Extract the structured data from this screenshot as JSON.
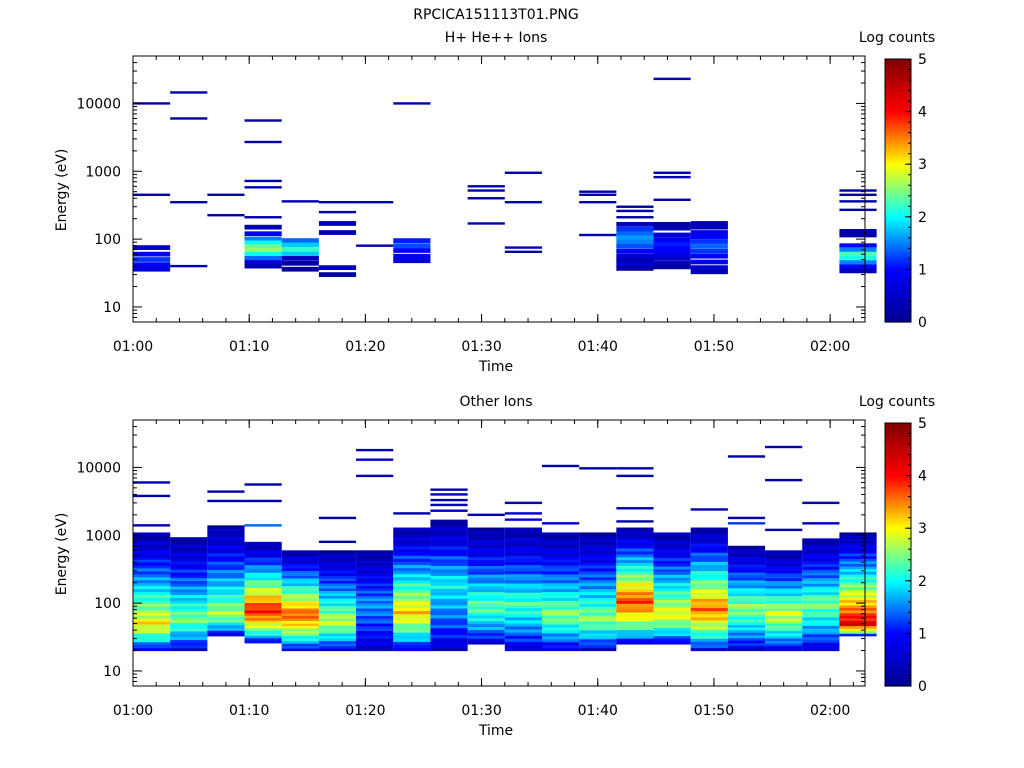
{
  "figure_title": "RPCICA151113T01.PNG",
  "colorbar": {
    "label": "Log counts",
    "ticks": [
      "0",
      "1",
      "2",
      "3",
      "4",
      "5"
    ],
    "colormap": [
      "#00008f",
      "#0000ff",
      "#00ffff",
      "#ffff00",
      "#ff0000",
      "#800000"
    ]
  },
  "chart_data": [
    {
      "type": "heatmap",
      "title": "H+ He++ Ions",
      "xlabel": "Time",
      "ylabel": "Energy (eV)",
      "x_ticks": [
        "01:00",
        "01:10",
        "01:20",
        "01:30",
        "01:40",
        "01:50",
        "02:00"
      ],
      "xlim_minutes": [
        0,
        63
      ],
      "y_ticks": [
        "10",
        "100",
        "1000",
        "10000"
      ],
      "ylim": [
        6,
        50000
      ],
      "y_scale": "log",
      "clim": [
        0,
        5
      ],
      "time_bins_minutes": [
        0,
        3.2,
        6.4,
        9.6,
        12.8,
        16,
        19.2,
        22.4,
        25.6,
        28.8,
        32,
        35.2,
        38.4,
        41.6,
        44.8,
        48,
        51.2,
        54.4,
        57.6,
        60.8
      ],
      "columns": [
        {
          "t": 0,
          "cells": [
            [
              10000,
              0.2
            ],
            [
              450,
              0.2
            ],
            [
              75,
              0.5
            ],
            [
              60,
              0.9
            ],
            [
              50,
              1.2
            ],
            [
              42,
              1.0
            ],
            [
              36,
              0.7
            ]
          ]
        },
        {
          "t": 3.2,
          "cells": [
            [
              14500,
              0.2
            ],
            [
              6000,
              0.2
            ],
            [
              350,
              0.2
            ],
            [
              40,
              0.4
            ]
          ]
        },
        {
          "t": 6.4,
          "cells": [
            [
              450,
              0.3
            ],
            [
              225,
              0.2
            ]
          ]
        },
        {
          "t": 9.6,
          "cells": [
            [
              5600,
              0.2
            ],
            [
              2700,
              0.2
            ],
            [
              720,
              0.3
            ],
            [
              580,
              0.2
            ],
            [
              210,
              0.2
            ],
            [
              150,
              0.3
            ],
            [
              120,
              0.9
            ],
            [
              100,
              1.5
            ],
            [
              88,
              2.0
            ],
            [
              78,
              2.4
            ],
            [
              68,
              2.6
            ],
            [
              60,
              2.0
            ],
            [
              52,
              1.4
            ],
            [
              45,
              0.7
            ],
            [
              40,
              0.3
            ]
          ]
        },
        {
          "t": 12.8,
          "cells": [
            [
              360,
              0.3
            ],
            [
              95,
              1.4
            ],
            [
              82,
              1.8
            ],
            [
              70,
              2.2
            ],
            [
              60,
              1.8
            ],
            [
              52,
              0.4
            ],
            [
              44,
              0.2
            ],
            [
              36,
              0.1
            ]
          ]
        },
        {
          "t": 16,
          "cells": [
            [
              350,
              0.2
            ],
            [
              250,
              0.3
            ],
            [
              170,
              0.4
            ],
            [
              125,
              0.3
            ],
            [
              38,
              0.4
            ],
            [
              30,
              0.2
            ]
          ]
        },
        {
          "t": 19.2,
          "cells": [
            [
              350,
              0.2
            ],
            [
              80,
              0.3
            ]
          ]
        },
        {
          "t": 22.4,
          "cells": [
            [
              10000,
              0.3
            ],
            [
              95,
              1.1
            ],
            [
              80,
              1.3
            ],
            [
              68,
              1.0
            ],
            [
              56,
              0.9
            ],
            [
              48,
              0.7
            ]
          ]
        },
        {
          "t": 28.8,
          "cells": [
            [
              600,
              0.2
            ],
            [
              520,
              0.3
            ],
            [
              400,
              0.2
            ],
            [
              170,
              0.3
            ]
          ]
        },
        {
          "t": 32,
          "cells": [
            [
              950,
              0.2
            ],
            [
              350,
              0.2
            ],
            [
              75,
              0.3
            ],
            [
              65,
              0.2
            ]
          ]
        },
        {
          "t": 38.4,
          "cells": [
            [
              500,
              0.2
            ],
            [
              450,
              0.2
            ],
            [
              350,
              0.2
            ],
            [
              115,
              0.3
            ]
          ]
        },
        {
          "t": 41.6,
          "cells": [
            [
              300,
              0.2
            ],
            [
              260,
              0.3
            ],
            [
              210,
              0.3
            ],
            [
              165,
              0.4
            ],
            [
              140,
              1.2
            ],
            [
              120,
              1.4
            ],
            [
              105,
              1.6
            ],
            [
              90,
              1.5
            ],
            [
              78,
              1.3
            ],
            [
              66,
              1.0
            ],
            [
              56,
              0.6
            ],
            [
              48,
              0.3
            ],
            [
              42,
              0.6
            ],
            [
              37,
              0.2
            ]
          ]
        },
        {
          "t": 44.8,
          "cells": [
            [
              23000,
              0.3
            ],
            [
              950,
              0.2
            ],
            [
              820,
              0.3
            ],
            [
              380,
              0.2
            ],
            [
              165,
              0.2
            ],
            [
              145,
              0.3
            ],
            [
              115,
              0.6
            ],
            [
              98,
              0.9
            ],
            [
              84,
              1.1
            ],
            [
              72,
              1.0
            ],
            [
              62,
              0.8
            ],
            [
              53,
              0.6
            ],
            [
              45,
              0.4
            ],
            [
              39,
              0.2
            ]
          ]
        },
        {
          "t": 48,
          "cells": [
            [
              170,
              0.3
            ],
            [
              150,
              0.4
            ],
            [
              125,
              0.8
            ],
            [
              108,
              1.0
            ],
            [
              92,
              1.2
            ],
            [
              78,
              1.4
            ],
            [
              66,
              1.2
            ],
            [
              56,
              1.0
            ],
            [
              46,
              0.9
            ],
            [
              38,
              0.6
            ],
            [
              33,
              0.3
            ]
          ]
        },
        {
          "t": 60.8,
          "cells": [
            [
              520,
              0.3
            ],
            [
              450,
              0.2
            ],
            [
              360,
              0.2
            ],
            [
              270,
              0.3
            ],
            [
              130,
              0.3
            ],
            [
              115,
              0.2
            ],
            [
              80,
              1.0
            ],
            [
              70,
              1.5
            ],
            [
              60,
              2.3
            ],
            [
              52,
              2.1
            ],
            [
              45,
              1.5
            ],
            [
              39,
              1.0
            ],
            [
              34,
              0.4
            ]
          ]
        }
      ]
    },
    {
      "type": "heatmap",
      "title": "Other Ions",
      "xlabel": "Time",
      "ylabel": "Energy (eV)",
      "x_ticks": [
        "01:00",
        "01:10",
        "01:20",
        "01:30",
        "01:40",
        "01:50",
        "02:00"
      ],
      "xlim_minutes": [
        0,
        63
      ],
      "y_ticks": [
        "10",
        "100",
        "1000",
        "10000"
      ],
      "ylim": [
        6,
        50000
      ],
      "y_scale": "log",
      "clim": [
        0,
        5
      ],
      "time_bins_minutes": [
        0,
        3.2,
        6.4,
        9.6,
        12.8,
        16,
        19.2,
        22.4,
        25.6,
        28.8,
        32,
        35.2,
        38.4,
        41.6,
        44.8,
        48,
        51.2,
        54.4,
        57.6,
        60.8
      ],
      "sparse_lines": [
        {
          "t": 0,
          "cells": [
            [
              6000,
              0.3
            ],
            [
              3800,
              0.3
            ],
            [
              1400,
              0.3
            ]
          ]
        },
        {
          "t": 3.2,
          "cells": [
            [
              900,
              0.3
            ]
          ]
        },
        {
          "t": 6.4,
          "cells": [
            [
              4400,
              0.2
            ],
            [
              3200,
              0.3
            ]
          ]
        },
        {
          "t": 9.6,
          "cells": [
            [
              5600,
              0.2
            ],
            [
              3200,
              0.3
            ],
            [
              1400,
              1.4
            ]
          ]
        },
        {
          "t": 16,
          "cells": [
            [
              1800,
              0.3
            ],
            [
              800,
              0.3
            ]
          ]
        },
        {
          "t": 19.2,
          "cells": [
            [
              18000,
              0.3
            ],
            [
              13000,
              0.6
            ],
            [
              7500,
              0.3
            ]
          ]
        },
        {
          "t": 22.4,
          "cells": [
            [
              2100,
              0.3
            ]
          ]
        },
        {
          "t": 25.6,
          "cells": [
            [
              4700,
              0.3
            ],
            [
              4000,
              0.4
            ],
            [
              3300,
              0.3
            ],
            [
              2800,
              0.5
            ],
            [
              2300,
              0.3
            ]
          ]
        },
        {
          "t": 28.8,
          "cells": [
            [
              2000,
              0.3
            ]
          ]
        },
        {
          "t": 32,
          "cells": [
            [
              3000,
              0.3
            ],
            [
              2100,
              0.5
            ],
            [
              1700,
              0.8
            ]
          ]
        },
        {
          "t": 35.2,
          "cells": [
            [
              10500,
              0.2
            ],
            [
              1500,
              0.3
            ]
          ]
        },
        {
          "t": 38.4,
          "cells": [
            [
              9700,
              0.2
            ]
          ]
        },
        {
          "t": 41.6,
          "cells": [
            [
              9700,
              0.3
            ],
            [
              7500,
              0.3
            ],
            [
              2500,
              0.3
            ],
            [
              1600,
              0.3
            ]
          ]
        },
        {
          "t": 48,
          "cells": [
            [
              2400,
              0.3
            ]
          ]
        },
        {
          "t": 51.2,
          "cells": [
            [
              14500,
              0.3
            ],
            [
              1800,
              0.3
            ],
            [
              1500,
              1.2
            ]
          ]
        },
        {
          "t": 54.4,
          "cells": [
            [
              20000,
              0.3
            ],
            [
              6500,
              0.3
            ],
            [
              1200,
              0.3
            ]
          ]
        },
        {
          "t": 57.6,
          "cells": [
            [
              3000,
              0.3
            ],
            [
              1500,
              0.3
            ]
          ]
        }
      ],
      "columns": [
        {
          "t": 0,
          "lo": 20,
          "hi": 1100,
          "peak": 50,
          "max": 3.1
        },
        {
          "t": 3.2,
          "lo": 20,
          "hi": 900,
          "peak": 60,
          "max": 2.5
        },
        {
          "t": 6.4,
          "lo": 33,
          "hi": 1400,
          "peak": 70,
          "max": 2.7
        },
        {
          "t": 9.6,
          "lo": 26,
          "hi": 800,
          "peak": 80,
          "max": 4.0
        },
        {
          "t": 12.8,
          "lo": 20,
          "hi": 600,
          "peak": 70,
          "max": 3.7
        },
        {
          "t": 16,
          "lo": 20,
          "hi": 600,
          "peak": 55,
          "max": 2.8
        },
        {
          "t": 19.2,
          "lo": 20,
          "hi": 600,
          "peak": 100,
          "max": 1.6
        },
        {
          "t": 22.4,
          "lo": 20,
          "hi": 1300,
          "peak": 75,
          "max": 3.2
        },
        {
          "t": 25.6,
          "lo": 20,
          "hi": 1700,
          "peak": 200,
          "max": 2.0
        },
        {
          "t": 28.8,
          "lo": 25,
          "hi": 1300,
          "peak": 90,
          "max": 2.4
        },
        {
          "t": 32,
          "lo": 20,
          "hi": 1300,
          "peak": 100,
          "max": 2.3
        },
        {
          "t": 35.2,
          "lo": 20,
          "hi": 1100,
          "peak": 70,
          "max": 2.6
        },
        {
          "t": 38.4,
          "lo": 20,
          "hi": 1100,
          "peak": 60,
          "max": 2.6
        },
        {
          "t": 41.6,
          "lo": 25,
          "hi": 1300,
          "peak": 110,
          "max": 3.8
        },
        {
          "t": 44.8,
          "lo": 25,
          "hi": 1100,
          "peak": 70,
          "max": 3.0
        },
        {
          "t": 48,
          "lo": 20,
          "hi": 1300,
          "peak": 85,
          "max": 3.6
        },
        {
          "t": 51.2,
          "lo": 20,
          "hi": 700,
          "peak": 90,
          "max": 2.6
        },
        {
          "t": 54.4,
          "lo": 20,
          "hi": 600,
          "peak": 70,
          "max": 2.9
        },
        {
          "t": 57.6,
          "lo": 20,
          "hi": 900,
          "peak": 100,
          "max": 2.5
        },
        {
          "t": 60.8,
          "lo": 33,
          "hi": 1100,
          "peak": 50,
          "max": 4.3
        }
      ]
    }
  ]
}
